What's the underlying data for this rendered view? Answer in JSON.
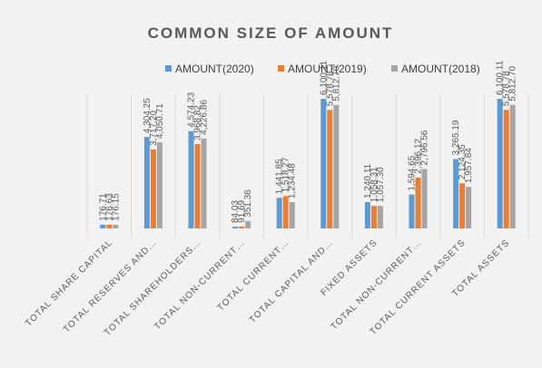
{
  "chart_data": {
    "type": "bar",
    "title": "COMMON SIZE OF AMOUNT",
    "legend_position": "top",
    "categories": [
      "TOTAL SHARE CAPITAL",
      "TOTAL RESERVES AND…",
      "TOTAL SHAREHOLDERS…",
      "TOTAL NON-CURRENT…",
      "TOTAL CURRENT…",
      "TOTAL CAPITAL AND…",
      "FIXED ASSETS",
      "TOTAL NON-CURRENT…",
      "TOTAL CURRENT ASSETS",
      "TOTAL ASSETS"
    ],
    "series": [
      {
        "name": "AMOUNT(2020)",
        "color": "#5b9bd5",
        "values": [
          176.71,
          4304.25,
          4574.23,
          84.03,
          1441.85,
          6100.11,
          1240.11,
          1594.65,
          3265.19,
          6100.11
        ],
        "labels": [
          "176.71",
          "4,304.25",
          "4,574.23",
          "84.03",
          "1,441.85",
          "6,100.11",
          "1,240.11",
          "1,594.65",
          "3,265.19",
          "6,100.11"
        ]
      },
      {
        "name": "AMOUNT(2019)",
        "color": "#ed7d31",
        "values": [
          176.63,
          3717.2,
          3968.82,
          91.69,
          1518.27,
          5578.78,
          1058.31,
          2396.12,
          2124.35,
          5578.78
        ],
        "labels": [
          "176.63",
          "3,717.20",
          "3,968.82",
          "91.69",
          "1,518.27",
          "5,578.78",
          "1,058.31",
          "2,396.12",
          "2,124.35",
          "5,578.78"
        ]
      },
      {
        "name": "AMOUNT(2018)",
        "color": "#a5a5a5",
        "values": [
          176.15,
          4050.71,
          4226.86,
          351.36,
          1234.48,
          5812.7,
          1057.3,
          2796.56,
          1957.84,
          5812.7
        ],
        "labels": [
          "176.15",
          "4,050.71",
          "4,226.86",
          "351.36",
          "1,234.48",
          "5,812.70",
          "1,057.30",
          "2,796.56",
          "1,957.84",
          "5,812.70"
        ]
      }
    ],
    "ylim": [
      0,
      7000
    ],
    "grid": "vertical category separators"
  }
}
